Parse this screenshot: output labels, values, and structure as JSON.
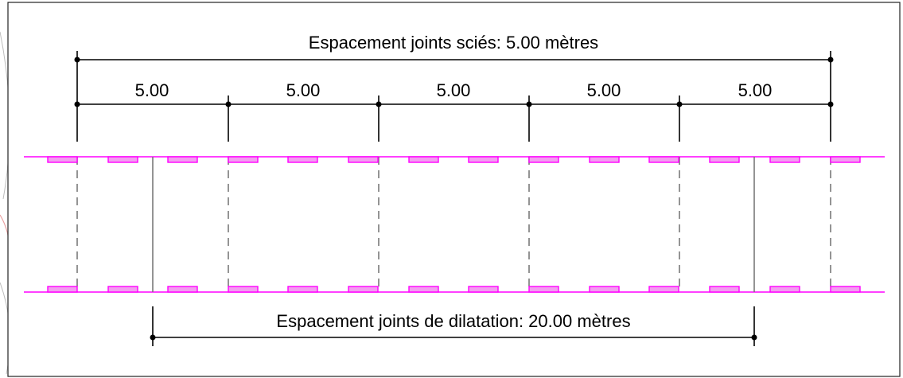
{
  "top_dimension": {
    "label": "Espacement joints sciés: 5.00 mètres"
  },
  "segment_labels": [
    "5.00",
    "5.00",
    "5.00",
    "5.00",
    "5.00"
  ],
  "bottom_dimension": {
    "label": "Espacement joints de dilatation: 20.00 mètres"
  },
  "colors": {
    "border_lines": "#ff00ff",
    "dowel_fill": "#f39cf0",
    "joints": "#7a7a7a",
    "dimension": "#000000"
  }
}
